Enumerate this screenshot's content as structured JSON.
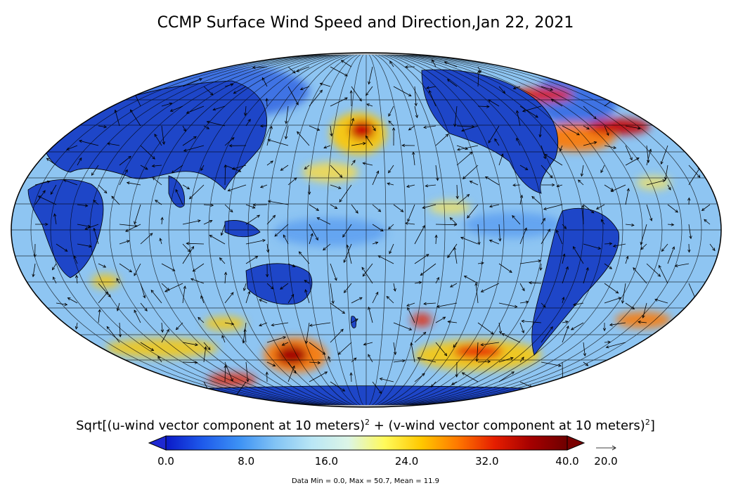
{
  "title": "CCMP Surface Wind Speed and Direction,Jan 22, 2021",
  "colorbar": {
    "label_main": "Sqrt[(u-wind vector component at 10 meters)",
    "label_mid": " + (v-wind vector component at 10 meters)",
    "label_end": "]",
    "sup": "2",
    "min": 0,
    "max": 40,
    "ticks": [
      "0.0",
      "8.0",
      "16.0",
      "24.0",
      "32.0",
      "40.0"
    ],
    "ref_vector": "20.0",
    "colors": [
      "#0a19c8",
      "#1e5aeb",
      "#3c91f5",
      "#82c3f5",
      "#b9e6f5",
      "#dcf5e6",
      "#fffa5a",
      "#ffc800",
      "#ff7800",
      "#e61e00",
      "#a50000",
      "#6e0000"
    ],
    "under_color": "#1e28d2",
    "over_color": "#7a0000"
  },
  "stats": "Data Min = 0.0, Max = 50.7, Mean = 11.9",
  "map": {
    "projection": "Mollweide",
    "ocean_color": "#8ec5f2",
    "land_color": "#1e46c8"
  }
}
